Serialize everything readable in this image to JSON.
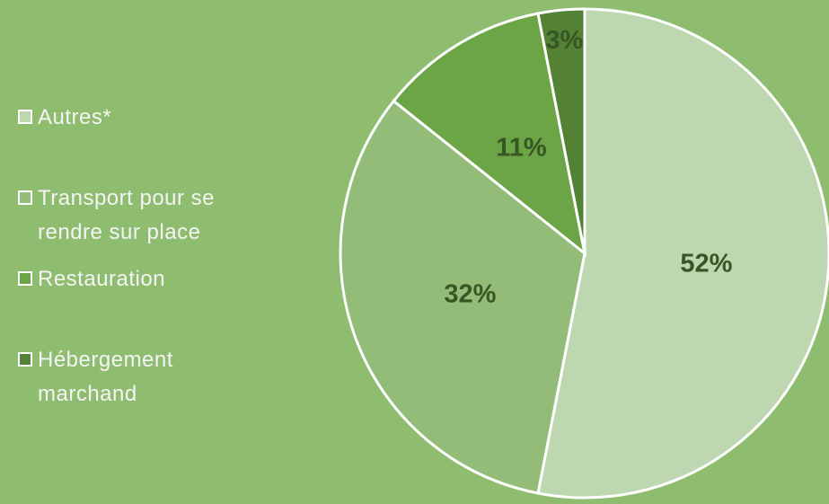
{
  "chart_data": {
    "type": "pie",
    "categories": [
      "Autres*",
      "Transport pour se rendre sur place",
      "Restauration",
      "Hébergement marchand"
    ],
    "values": [
      52,
      32,
      11,
      3
    ],
    "value_labels": [
      "52%",
      "32%",
      "11%",
      "3%"
    ],
    "colors": [
      "#bdd7b1",
      "#93bc79",
      "#6ba545",
      "#548235"
    ],
    "legend": "left"
  }
}
